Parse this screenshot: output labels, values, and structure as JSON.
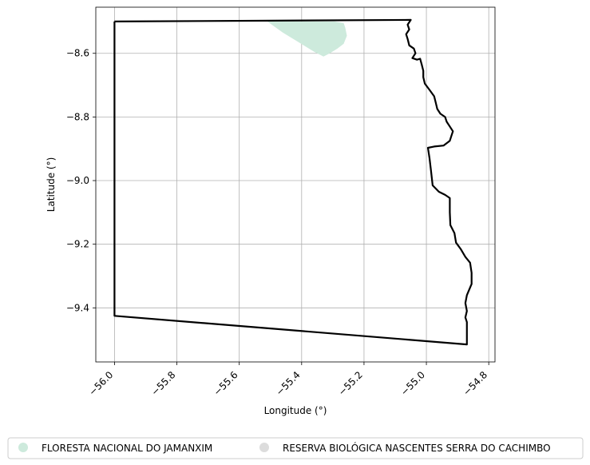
{
  "map": {
    "xlabel": "Longitude (°)",
    "ylabel": "Latitude (°)",
    "xlim": [
      -56.06,
      -54.78
    ],
    "ylim": [
      -9.57,
      -8.455
    ],
    "xticks": [
      {
        "value": -56.0,
        "label": "−56.0"
      },
      {
        "value": -55.8,
        "label": "−55.8"
      },
      {
        "value": -55.6,
        "label": "−55.6"
      },
      {
        "value": -55.4,
        "label": "−55.4"
      },
      {
        "value": -55.2,
        "label": "−55.2"
      },
      {
        "value": -55.0,
        "label": "−55.0"
      },
      {
        "value": -54.8,
        "label": "−54.8"
      }
    ],
    "yticks": [
      {
        "value": -8.6,
        "label": "−8.6"
      },
      {
        "value": -8.8,
        "label": "−8.8"
      },
      {
        "value": -9.0,
        "label": "−9.0"
      },
      {
        "value": -9.2,
        "label": "−9.2"
      },
      {
        "value": -9.4,
        "label": "−9.4"
      }
    ],
    "grid": true,
    "colors": {
      "boundary": "#000000",
      "grid": "#b0b0b0",
      "jamanxim": "#cdeadc",
      "cachimbo": "#dcdcdc"
    },
    "legend": {
      "placement": "bottom",
      "items": [
        {
          "label": "FLORESTA NACIONAL DO JAMANXIM",
          "color": "#cdeadc"
        },
        {
          "label": "RESERVA BIOLÓGICA NASCENTES SERRA DO CACHIMBO",
          "color": "#dcdcdc"
        }
      ]
    },
    "boundary": [
      [
        -56.0,
        -8.5
      ],
      [
        -55.05,
        -8.495
      ],
      [
        -55.06,
        -8.51
      ],
      [
        -55.055,
        -8.525
      ],
      [
        -55.065,
        -8.54
      ],
      [
        -55.06,
        -8.555
      ],
      [
        -55.055,
        -8.575
      ],
      [
        -55.04,
        -8.585
      ],
      [
        -55.035,
        -8.6
      ],
      [
        -55.045,
        -8.615
      ],
      [
        -55.03,
        -8.62
      ],
      [
        -55.02,
        -8.617
      ],
      [
        -55.015,
        -8.635
      ],
      [
        -55.01,
        -8.655
      ],
      [
        -55.01,
        -8.675
      ],
      [
        -55.005,
        -8.695
      ],
      [
        -54.99,
        -8.715
      ],
      [
        -54.975,
        -8.735
      ],
      [
        -54.97,
        -8.755
      ],
      [
        -54.965,
        -8.775
      ],
      [
        -54.955,
        -8.79
      ],
      [
        -54.94,
        -8.8
      ],
      [
        -54.935,
        -8.815
      ],
      [
        -54.925,
        -8.83
      ],
      [
        -54.915,
        -8.845
      ],
      [
        -54.92,
        -8.86
      ],
      [
        -54.925,
        -8.875
      ],
      [
        -54.945,
        -8.89
      ],
      [
        -54.975,
        -8.893
      ],
      [
        -54.995,
        -8.897
      ],
      [
        -54.99,
        -8.93
      ],
      [
        -54.985,
        -8.97
      ],
      [
        -54.98,
        -9.015
      ],
      [
        -54.96,
        -9.035
      ],
      [
        -54.94,
        -9.045
      ],
      [
        -54.925,
        -9.055
      ],
      [
        -54.925,
        -9.1
      ],
      [
        -54.923,
        -9.14
      ],
      [
        -54.91,
        -9.165
      ],
      [
        -54.905,
        -9.195
      ],
      [
        -54.89,
        -9.215
      ],
      [
        -54.875,
        -9.24
      ],
      [
        -54.86,
        -9.258
      ],
      [
        -54.855,
        -9.29
      ],
      [
        -54.855,
        -9.325
      ],
      [
        -54.87,
        -9.36
      ],
      [
        -54.875,
        -9.385
      ],
      [
        -54.87,
        -9.41
      ],
      [
        -54.875,
        -9.43
      ],
      [
        -54.87,
        -9.445
      ],
      [
        -54.87,
        -9.515
      ],
      [
        -56.0,
        -9.425
      ],
      [
        -56.0,
        -8.5
      ]
    ],
    "jamanxim": [
      [
        -55.51,
        -8.5
      ],
      [
        -55.295,
        -8.5
      ],
      [
        -55.265,
        -8.505
      ],
      [
        -55.26,
        -8.52
      ],
      [
        -55.255,
        -8.545
      ],
      [
        -55.265,
        -8.57
      ],
      [
        -55.285,
        -8.585
      ],
      [
        -55.31,
        -8.6
      ],
      [
        -55.33,
        -8.61
      ],
      [
        -55.36,
        -8.595
      ],
      [
        -55.41,
        -8.565
      ],
      [
        -55.46,
        -8.535
      ],
      [
        -55.51,
        -8.5
      ]
    ]
  }
}
